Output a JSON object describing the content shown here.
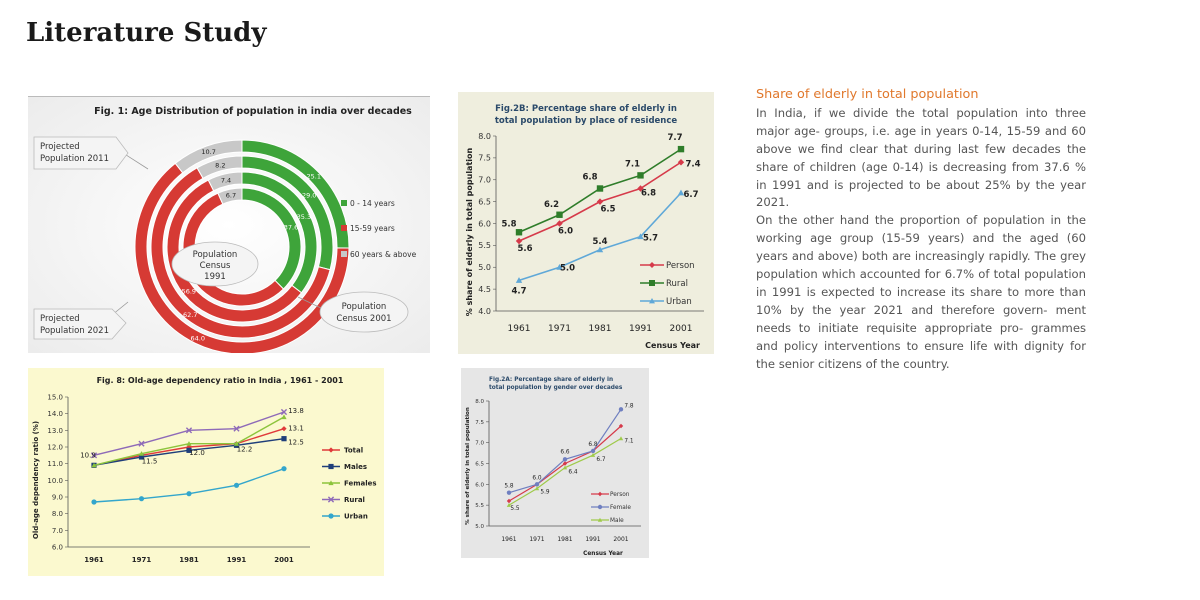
{
  "page_title": "Literature Study",
  "side": {
    "heading": "Share of elderly in total population",
    "paragraphs": [
      "In India, if we divide the total population into three major age- groups, i.e. age in years 0-14, 15-59 and 60 above we find clear that during last few decades the share of children (age 0-14) is decreasing from 37.6 % in 1991 and is projected to be about 25% by the year 2021.",
      "On the other hand the proportion of population in the working age group (15-59 years) and the aged (60 years and above) both are increasingly rapidly. The grey population which accounted for 6.7% of total population in 1991 is expected to increase its share to more than 10% by the year 2021 and therefore govern- ment needs to initiate requisite appropriate pro- grammes and policy interventions to ensure life with dignity for the senior citizens of the country."
    ]
  },
  "chart_data": [
    {
      "id": "fig1",
      "type": "pie",
      "subtype": "nested-donut",
      "title": "Fig. 1: Age Distribution of population in india over decades",
      "rings": [
        {
          "label": "Population Census 1991",
          "values": [
            37.6,
            55.7,
            6.7
          ]
        },
        {
          "label": "Population Census 2001",
          "values": [
            35.3,
            56.9,
            7.4
          ]
        },
        {
          "label": "Projected Population 2011",
          "values": [
            29.0,
            62.7,
            8.2
          ]
        },
        {
          "label": "Projected Population 2021",
          "values": [
            25.1,
            64.0,
            10.7
          ]
        }
      ],
      "ring_labels": {
        "r1991": [
          "Population",
          "Census",
          "1991"
        ],
        "r2001": [
          "Population",
          "Census 2001"
        ],
        "r2011": [
          "Projected",
          "Population 2011"
        ],
        "r2021": [
          "Projected",
          "Population 2021"
        ]
      },
      "categories": [
        "0 - 14 years",
        "15-59 years",
        "60 years & above"
      ],
      "colors": [
        "#3ea43a",
        "#d63a34",
        "#c8c8c8"
      ]
    },
    {
      "id": "fig2b",
      "type": "line",
      "title": [
        "Fig.2B: Percentage share of elderly in",
        "total population by place of residence"
      ],
      "xlabel": "Census Year",
      "ylabel": "% share of elderly in total population",
      "x": [
        "1961",
        "1971",
        "1981",
        "1991",
        "2001"
      ],
      "ylim": [
        4.0,
        8.0
      ],
      "yticks": [
        "4.0",
        "4.5",
        "5.0",
        "5.5",
        "6.0",
        "6.5",
        "7.0",
        "7.5",
        "8.0"
      ],
      "series": [
        {
          "name": "Person",
          "values": [
            5.6,
            6.0,
            6.5,
            6.8,
            7.4
          ],
          "labels": [
            "5.6",
            "6.0",
            "6.5",
            "6.8",
            "7.4"
          ],
          "color": "#d63a4a",
          "marker": "diamond"
        },
        {
          "name": "Rural",
          "values": [
            5.8,
            6.2,
            6.8,
            7.1,
            7.7
          ],
          "labels": [
            "5.8",
            "6.2",
            "6.8",
            "7.1",
            "7.7"
          ],
          "color": "#2f7d2a",
          "marker": "square"
        },
        {
          "name": "Urban",
          "values": [
            4.7,
            5.0,
            5.4,
            5.7,
            6.7
          ],
          "labels": [
            "4.7",
            "5.0",
            "5.4",
            "5.7",
            "6.7"
          ],
          "color": "#5fa8d8",
          "marker": "triangle"
        }
      ]
    },
    {
      "id": "fig8",
      "type": "line",
      "title": "Fig. 8: Old-age dependency ratio in India , 1961 - 2001",
      "ylabel": "Old-age dependency ratio (%)",
      "x": [
        "1961",
        "1971",
        "1981",
        "1991",
        "2001"
      ],
      "ylim": [
        6.0,
        15.0
      ],
      "yticks": [
        "6.0",
        "7.0",
        "8.0",
        "9.0",
        "10.0",
        "11.0",
        "12.0",
        "13.0",
        "14.0",
        "15.0"
      ],
      "series": [
        {
          "name": "Total",
          "values": [
            10.9,
            11.5,
            12.0,
            12.2,
            13.1
          ],
          "color": "#e03a3a",
          "marker": "diamond"
        },
        {
          "name": "Males",
          "values": [
            10.9,
            11.4,
            11.8,
            12.1,
            12.5
          ],
          "color": "#1f3f7a",
          "marker": "square"
        },
        {
          "name": "Females",
          "values": [
            10.9,
            11.6,
            12.2,
            12.2,
            13.8
          ],
          "color": "#8cc43c",
          "marker": "triangle"
        },
        {
          "name": "Rural",
          "values": [
            11.5,
            12.2,
            13.0,
            13.1,
            14.1
          ],
          "color": "#8e6ab8",
          "marker": "x"
        },
        {
          "name": "Urban",
          "values": [
            8.7,
            8.9,
            9.2,
            9.7,
            10.7
          ],
          "color": "#33a6cc",
          "marker": "circle"
        }
      ],
      "point_labels": [
        {
          "text": "10.9",
          "x": 0,
          "y": 10.9
        },
        {
          "text": "11.5",
          "x": 1,
          "y": 11.5
        },
        {
          "text": "12.0",
          "x": 2,
          "y": 12.0
        },
        {
          "text": "12.2",
          "x": 3,
          "y": 12.2
        },
        {
          "text": "13.8",
          "x": 4,
          "y": 13.8
        },
        {
          "text": "13.1",
          "x": 4,
          "y": 13.1
        },
        {
          "text": "12.5",
          "x": 4,
          "y": 12.5
        }
      ]
    },
    {
      "id": "fig2a",
      "type": "line",
      "title": [
        "Fig.2A: Percentage share of elderly in",
        "total population by gender over decades"
      ],
      "xlabel": "Census Year",
      "ylabel": "% share of elderly in total population",
      "x": [
        "1961",
        "1971",
        "1981",
        "1991",
        "2001"
      ],
      "ylim": [
        5.0,
        8.0
      ],
      "yticks": [
        "5.0",
        "5.5",
        "6.0",
        "6.5",
        "7.0",
        "7.5",
        "8.0"
      ],
      "series": [
        {
          "name": "Person",
          "values": [
            5.6,
            6.0,
            6.5,
            6.8,
            7.4
          ],
          "color": "#d63a4a",
          "marker": "diamond"
        },
        {
          "name": "Female",
          "values": [
            5.8,
            6.0,
            6.6,
            6.8,
            7.8
          ],
          "color": "#6f7fc0",
          "marker": "circle"
        },
        {
          "name": "Male",
          "values": [
            5.5,
            5.9,
            6.4,
            6.7,
            7.1
          ],
          "color": "#9fca4a",
          "marker": "triangle"
        }
      ],
      "point_labels": [
        {
          "text": "5.8",
          "x": 0,
          "y": 5.8
        },
        {
          "text": "5.5",
          "x": 0,
          "y": 5.5
        },
        {
          "text": "6.0",
          "x": 1,
          "y": 6.0
        },
        {
          "text": "5.9",
          "x": 1,
          "y": 5.9
        },
        {
          "text": "6.6",
          "x": 2,
          "y": 6.6
        },
        {
          "text": "6.4",
          "x": 2,
          "y": 6.4
        },
        {
          "text": "6.8",
          "x": 3,
          "y": 6.8
        },
        {
          "text": "6.7",
          "x": 3,
          "y": 6.7
        },
        {
          "text": "7.8",
          "x": 4,
          "y": 7.8
        },
        {
          "text": "7.1",
          "x": 4,
          "y": 7.1
        }
      ]
    }
  ]
}
